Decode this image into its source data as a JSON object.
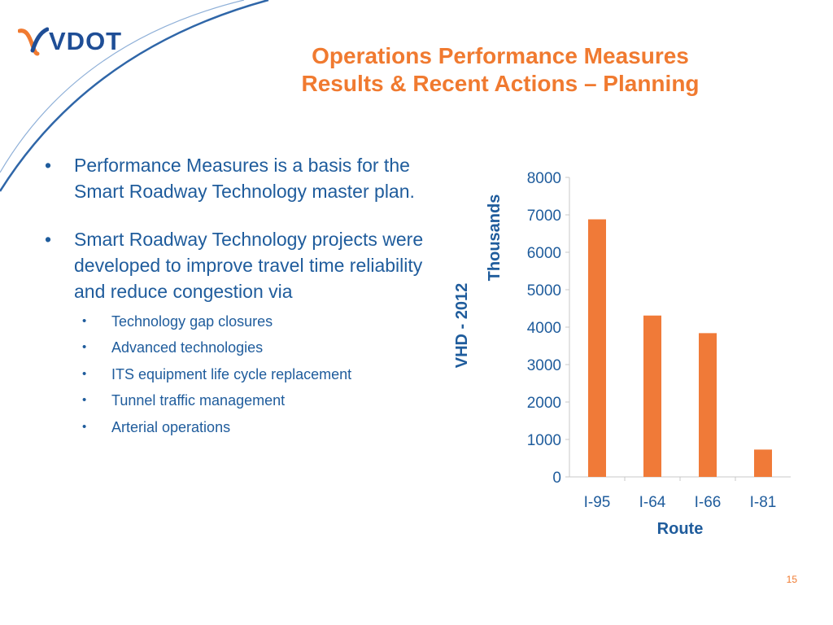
{
  "logo": {
    "text": "VDOT"
  },
  "title": {
    "line1": "Operations Performance Measures",
    "line2": "Results & Recent Actions – Planning"
  },
  "bullets": [
    {
      "text": "Performance Measures is a basis for the Smart Roadway Technology master plan.",
      "sub": []
    },
    {
      "text": "Smart Roadway Technology projects were developed to improve travel time reliability and reduce congestion via",
      "sub": [
        "Technology gap closures",
        "Advanced technologies",
        "ITS equipment life cycle replacement",
        "Tunnel traffic management",
        "Arterial operations"
      ]
    }
  ],
  "chart_data": {
    "type": "bar",
    "categories": [
      "I-95",
      "I-64",
      "I-66",
      "I-81"
    ],
    "values": [
      6880,
      4310,
      3840,
      730
    ],
    "xlabel": "Route",
    "ylabel": "VHD - 2012",
    "yunit": "Thousands",
    "ylim": [
      0,
      8000
    ],
    "yticks": [
      0,
      1000,
      2000,
      3000,
      4000,
      5000,
      6000,
      7000,
      8000
    ],
    "grid": false,
    "legend": "none",
    "bar_color": "#f07a38",
    "axis_label_color": "#1f5c9c"
  },
  "colors": {
    "accent": "#f07a30",
    "text": "#1f5c9c",
    "brand": "#1f4e96"
  },
  "page_number": "15"
}
